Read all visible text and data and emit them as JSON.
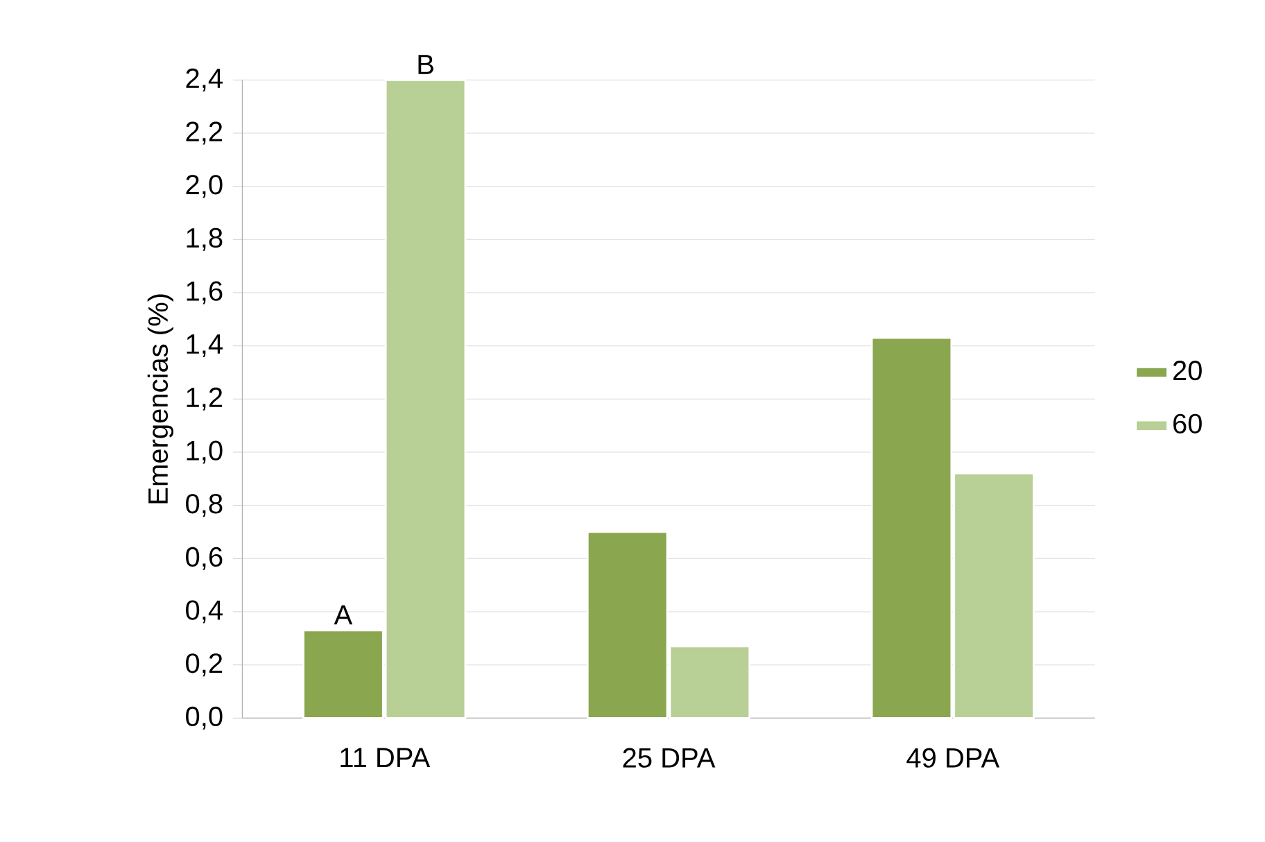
{
  "chart_data": {
    "type": "bar",
    "ylabel": "Emergencias (%)",
    "categories": [
      "11 DPA",
      "25 DPA",
      "49 DPA"
    ],
    "series": [
      {
        "name": "20",
        "color": "#8aa64f",
        "values": [
          0.33,
          0.7,
          1.43
        ]
      },
      {
        "name": "60",
        "color": "#b8cf95",
        "values": [
          2.4,
          0.27,
          0.92
        ]
      }
    ],
    "ylim": [
      0,
      2.4
    ],
    "yticks": [
      {
        "value": 0,
        "label": "0,0"
      },
      {
        "value": 0.2,
        "label": "0,2"
      },
      {
        "value": 0.4,
        "label": "0,4"
      },
      {
        "value": 0.6,
        "label": "0,6"
      },
      {
        "value": 0.8,
        "label": "0,8"
      },
      {
        "value": 1.0,
        "label": "1,0"
      },
      {
        "value": 1.2,
        "label": "1,2"
      },
      {
        "value": 1.4,
        "label": "1,4"
      },
      {
        "value": 1.6,
        "label": "1,6"
      },
      {
        "value": 1.8,
        "label": "1,8"
      },
      {
        "value": 2.0,
        "label": "2,0"
      },
      {
        "value": 2.2,
        "label": "2,2"
      },
      {
        "value": 2.4,
        "label": "2,4"
      }
    ],
    "annotations": [
      {
        "text": "A",
        "x": "11 DPA",
        "y": 0.33
      },
      {
        "text": "B",
        "x": "11 DPA",
        "y": 2.4
      }
    ],
    "grid": "y",
    "legend": "right"
  }
}
